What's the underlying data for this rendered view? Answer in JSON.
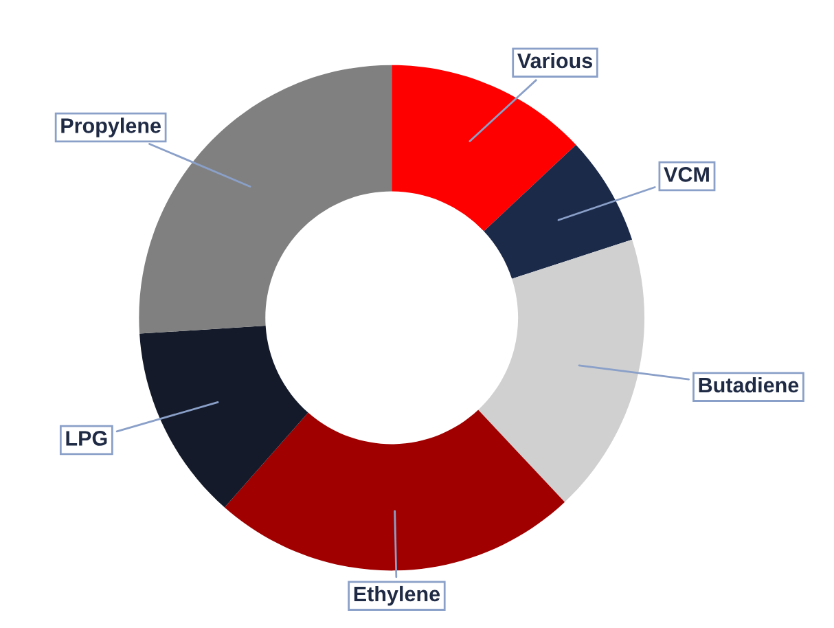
{
  "chart_data": {
    "type": "donut",
    "categories": [
      "Various",
      "VCM",
      "Butadiene",
      "Ethylene",
      "LPG",
      "Propylene"
    ],
    "values": [
      13,
      7,
      18,
      23.5,
      12.5,
      26
    ],
    "colors": [
      "#ff0000",
      "#1c2a4a",
      "#d0d0d0",
      "#a00000",
      "#141a2a",
      "#808080"
    ],
    "legend": false
  }
}
